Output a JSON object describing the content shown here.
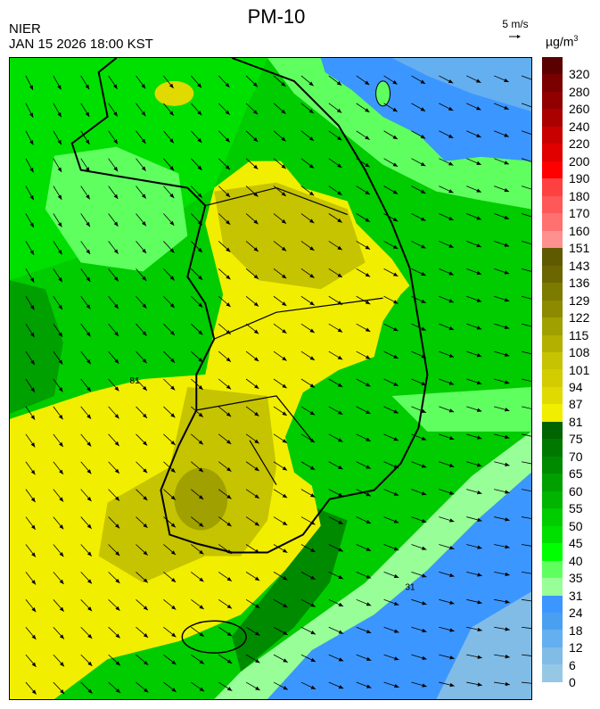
{
  "header": {
    "title": "PM-10",
    "source": "NIER",
    "datetime": "JAN 15 2026 18:00 KST",
    "wind_reference": "5 m/s",
    "unit": "µg/m",
    "unit_sup": "3"
  },
  "legend": {
    "labels": [
      "320",
      "280",
      "260",
      "240",
      "220",
      "200",
      "190",
      "180",
      "170",
      "160",
      "151",
      "143",
      "136",
      "129",
      "122",
      "115",
      "108",
      "101",
      "94",
      "87",
      "81",
      "75",
      "70",
      "65",
      "60",
      "55",
      "50",
      "45",
      "40",
      "35",
      "31",
      "24",
      "18",
      "12",
      "6",
      "0"
    ],
    "colors": [
      "#5a0000",
      "#7a0000",
      "#900000",
      "#aa0000",
      "#c80000",
      "#e00000",
      "#ff0000",
      "#ff4040",
      "#ff5858",
      "#ff7070",
      "#ff9090",
      "#5f5a00",
      "#6b6600",
      "#7d7a00",
      "#8d8a00",
      "#a0a000",
      "#b3b000",
      "#c6c300",
      "#d2cc00",
      "#e0da00",
      "#f2ee00",
      "#006400",
      "#007800",
      "#008a00",
      "#00a000",
      "#00b400",
      "#00cc00",
      "#00e000",
      "#00ff00",
      "#60ff60",
      "#98ff98",
      "#3c96ff",
      "#4aa0f0",
      "#64aff0",
      "#80bce6",
      "#96c8e6"
    ]
  },
  "map": {
    "contour_labels": [
      "81",
      "31"
    ],
    "icon": "wind-vector-arrows"
  }
}
